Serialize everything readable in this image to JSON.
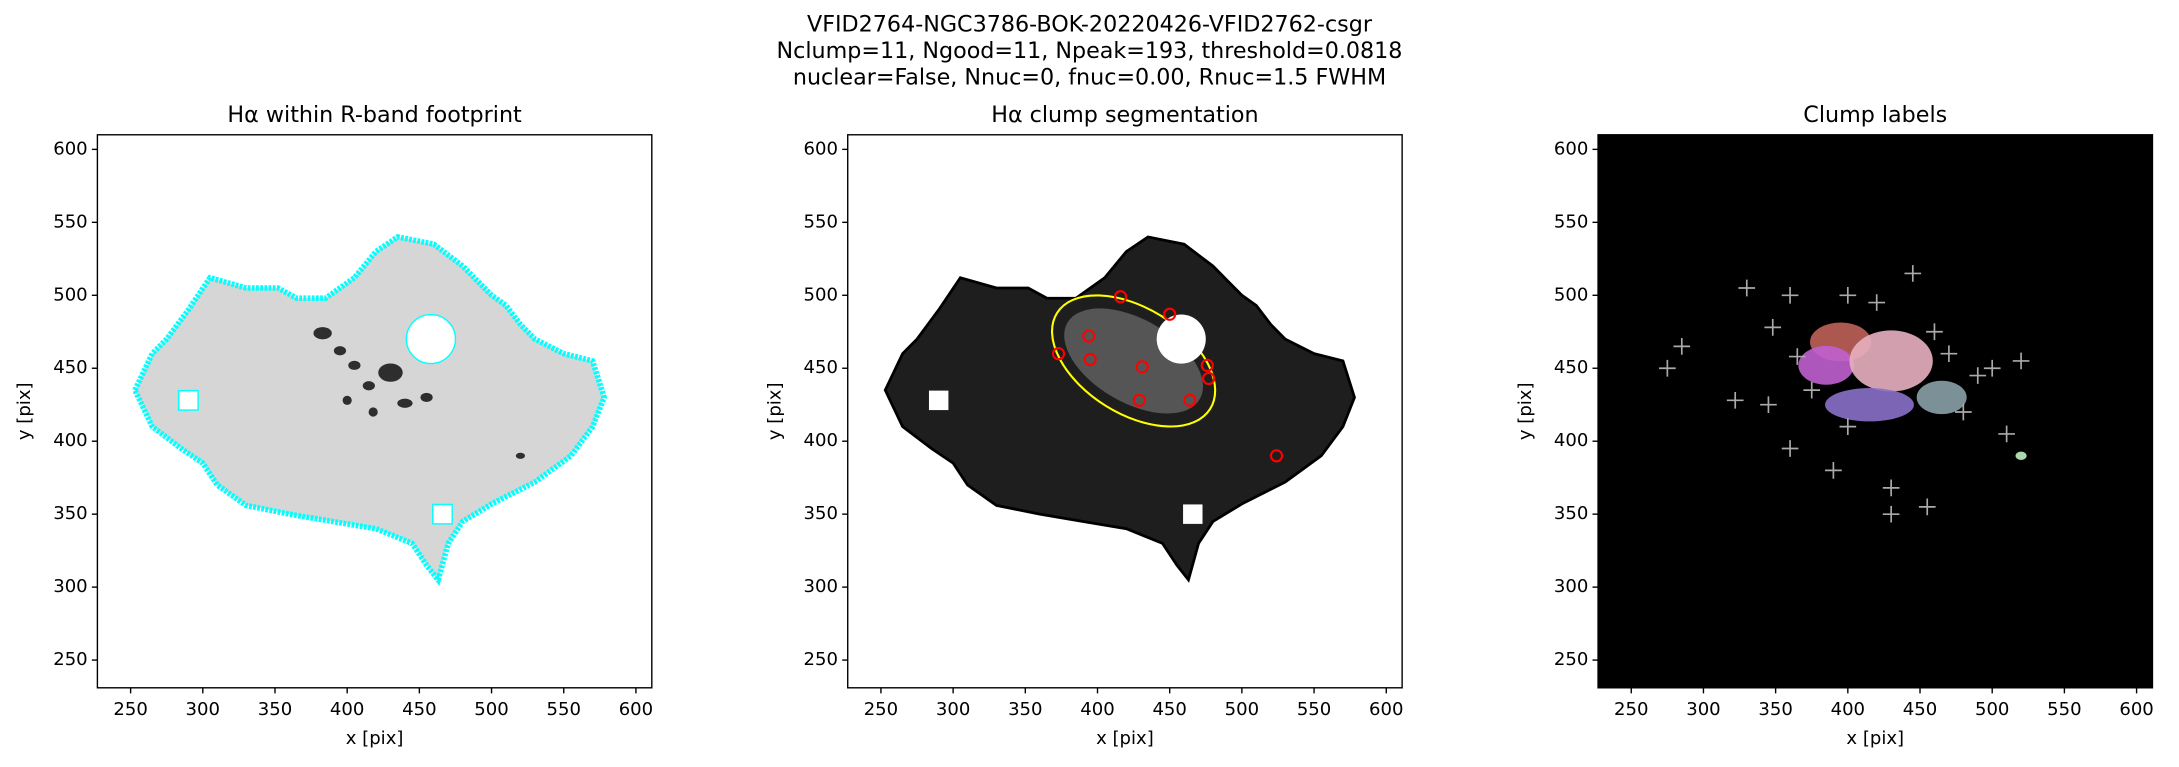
{
  "suptitle": [
    "VFID2764-NGC3786-BOK-20220426-VFID2762-csgr",
    "Nclump=11, Ngood=11, Npeak=193, threshold=0.0818",
    "nuclear=False, Nnuc=0, fnuc=0.00, Rnuc=1.5 FWHM"
  ],
  "chart_data": [
    {
      "type": "image",
      "title": "Hα within R-band footprint",
      "xlabel": "x [pix]",
      "ylabel": "y [pix]",
      "xlim": [
        227,
        611
      ],
      "ylim": [
        231,
        610
      ],
      "xticks": [
        250,
        300,
        350,
        400,
        450,
        500,
        550,
        600
      ],
      "yticks": [
        250,
        300,
        350,
        400,
        450,
        500,
        550,
        600
      ],
      "color": "#00ffff"
    },
    {
      "type": "image",
      "title": "Hα clump segmentation",
      "xlabel": "x [pix]",
      "ylabel": "y [pix]",
      "xlim": [
        227,
        611
      ],
      "ylim": [
        231,
        610
      ],
      "xticks": [
        250,
        300,
        350,
        400,
        450,
        500,
        550,
        600
      ],
      "yticks": [
        250,
        300,
        350,
        400,
        450,
        500,
        550,
        600
      ],
      "color": "#ffff00",
      "clumps": {
        "color": "#ff0000",
        "x": [
          416,
          450,
          394,
          373,
          395,
          431,
          476,
          477,
          429,
          464,
          524
        ],
        "y": [
          499,
          487,
          472,
          460,
          456,
          451,
          452,
          443,
          428,
          428,
          390
        ]
      }
    },
    {
      "type": "image",
      "title": "Clump labels",
      "xlabel": "x [pix]",
      "ylabel": "y [pix]",
      "xlim": [
        227,
        611
      ],
      "ylim": [
        231,
        610
      ],
      "xticks": [
        250,
        300,
        350,
        400,
        450,
        500,
        550,
        600
      ],
      "yticks": [
        250,
        300,
        350,
        400,
        450,
        500,
        550,
        600
      ]
    }
  ]
}
